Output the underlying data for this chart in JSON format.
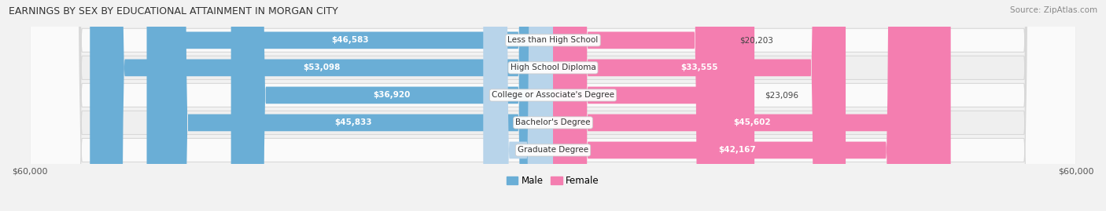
{
  "title": "EARNINGS BY SEX BY EDUCATIONAL ATTAINMENT IN MORGAN CITY",
  "source": "Source: ZipAtlas.com",
  "categories": [
    "Less than High School",
    "High School Diploma",
    "College or Associate's Degree",
    "Bachelor's Degree",
    "Graduate Degree"
  ],
  "male_values": [
    46583,
    53098,
    36920,
    45833,
    0
  ],
  "female_values": [
    20203,
    33555,
    23096,
    45602,
    42167
  ],
  "male_color": "#6aaed6",
  "female_color": "#f47eb0",
  "male_color_pale": "#b8d4ea",
  "female_color_pale": "#f9c0d8",
  "max_value": 60000,
  "bar_height": 0.62,
  "background_color": "#f2f2f2",
  "row_colors": [
    "#fafafa",
    "#efefef"
  ]
}
